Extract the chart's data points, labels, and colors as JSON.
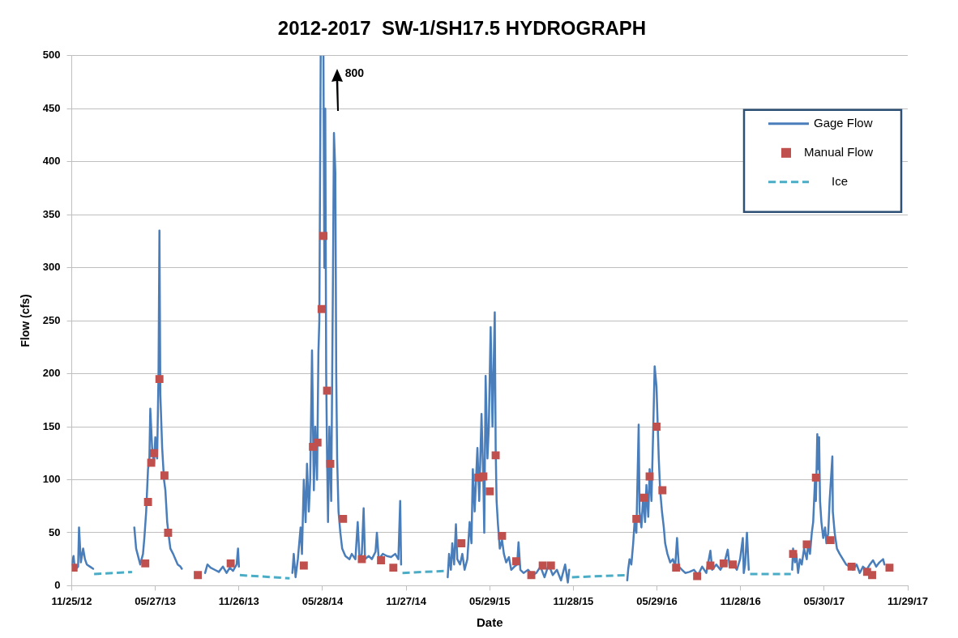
{
  "chart_data": {
    "type": "line",
    "title": "2012-2017  SW-1/SH17.5 HYDROGRAPH",
    "xlabel": "Date",
    "ylabel": "Flow (cfs)",
    "xlim": [
      "2012-11-25",
      "2017-11-29"
    ],
    "xticks": [
      {
        "value": "2012-11-25",
        "label": "11/25/12"
      },
      {
        "value": "2013-05-27",
        "label": "05/27/13"
      },
      {
        "value": "2013-11-26",
        "label": "11/26/13"
      },
      {
        "value": "2014-05-28",
        "label": "05/28/14"
      },
      {
        "value": "2014-11-27",
        "label": "11/27/14"
      },
      {
        "value": "2015-05-29",
        "label": "05/29/15"
      },
      {
        "value": "2015-11-28",
        "label": "11/28/15"
      },
      {
        "value": "2016-05-29",
        "label": "05/29/16"
      },
      {
        "value": "2016-11-28",
        "label": "11/28/16"
      },
      {
        "value": "2017-05-30",
        "label": "05/30/17"
      },
      {
        "value": "2017-11-29",
        "label": "11/29/17"
      }
    ],
    "ylim": [
      0,
      500
    ],
    "yticks": [
      0,
      50,
      100,
      150,
      200,
      250,
      300,
      350,
      400,
      450,
      500
    ],
    "grid": "y",
    "legend": "top right",
    "annotations": [
      "800"
    ],
    "series": [
      {
        "name": "Gage Flow",
        "type": "line",
        "color": "#4a7ebb",
        "marker": "none",
        "line_style": "solid",
        "x": [
          "2012-11-25",
          "2012-11-29",
          "2012-12-02",
          "2012-12-09",
          "2012-12-11",
          "2012-12-15",
          "2012-12-20",
          "2012-12-24",
          "2012-12-28",
          "2013-01-04",
          "2013-01-11",
          "2013-02-20",
          "2013-04-11",
          "2013-04-15",
          "2013-04-21",
          "2013-04-24",
          "2013-04-30",
          "2013-05-03",
          "2013-05-07",
          "2013-05-11",
          "2013-05-14",
          "2013-05-16",
          "2013-05-20",
          "2013-05-24",
          "2013-05-27",
          "2013-05-31",
          "2013-06-03",
          "2013-06-05",
          "2013-06-07",
          "2013-06-11",
          "2013-06-15",
          "2013-06-18",
          "2013-06-22",
          "2013-06-26",
          "2013-06-29",
          "2013-07-05",
          "2013-07-10",
          "2013-07-15",
          "2013-07-21",
          "2013-07-24",
          "2013-08-20",
          "2013-09-13",
          "2013-09-18",
          "2013-09-25",
          "2013-10-04",
          "2013-10-13",
          "2013-10-22",
          "2013-10-30",
          "2013-11-06",
          "2013-11-13",
          "2013-11-21",
          "2013-11-24",
          "2013-11-26",
          "2014-01-20",
          "2014-03-23",
          "2014-03-26",
          "2014-03-30",
          "2014-04-04",
          "2014-04-10",
          "2014-04-13",
          "2014-04-17",
          "2014-04-21",
          "2014-04-24",
          "2014-04-28",
          "2014-05-01",
          "2014-05-05",
          "2014-05-09",
          "2014-05-12",
          "2014-05-16",
          "2014-05-19",
          "2014-05-21",
          "2014-05-24",
          "2014-05-27",
          "2014-05-30",
          "2014-06-01",
          "2014-06-03",
          "2014-06-05",
          "2014-06-07",
          "2014-06-09",
          "2014-06-12",
          "2014-06-16",
          "2014-06-20",
          "2014-06-22",
          "2014-06-25",
          "2014-06-27",
          "2014-06-29",
          "2014-07-02",
          "2014-07-06",
          "2014-07-10",
          "2014-07-17",
          "2014-07-26",
          "2014-07-31",
          "2014-08-08",
          "2014-08-13",
          "2014-08-17",
          "2014-08-22",
          "2014-08-26",
          "2014-08-29",
          "2014-09-06",
          "2014-09-13",
          "2014-09-21",
          "2014-09-24",
          "2014-09-28",
          "2014-10-07",
          "2014-10-16",
          "2014-10-25",
          "2014-11-03",
          "2014-11-10",
          "2014-11-14",
          "2014-11-16",
          "2015-01-10",
          "2015-02-26",
          "2015-03-01",
          "2015-03-05",
          "2015-03-08",
          "2015-03-12",
          "2015-03-16",
          "2015-03-19",
          "2015-03-25",
          "2015-03-30",
          "2015-04-04",
          "2015-04-10",
          "2015-04-15",
          "2015-04-19",
          "2015-04-22",
          "2015-04-26",
          "2015-05-02",
          "2015-05-06",
          "2015-05-11",
          "2015-05-15",
          "2015-05-17",
          "2015-05-20",
          "2015-05-24",
          "2015-05-27",
          "2015-05-31",
          "2015-06-04",
          "2015-06-09",
          "2015-06-11",
          "2015-06-13",
          "2015-06-16",
          "2015-06-20",
          "2015-06-25",
          "2015-06-29",
          "2015-07-04",
          "2015-07-10",
          "2015-07-15",
          "2015-07-22",
          "2015-07-28",
          "2015-07-31",
          "2015-08-04",
          "2015-08-11",
          "2015-08-21",
          "2015-08-30",
          "2015-09-08",
          "2015-09-17",
          "2015-09-26",
          "2015-10-05",
          "2015-10-14",
          "2015-10-23",
          "2015-11-01",
          "2015-11-10",
          "2015-11-16",
          "2015-11-19",
          "2016-01-20",
          "2016-03-25",
          "2016-03-27",
          "2016-03-30",
          "2016-04-03",
          "2016-04-07",
          "2016-04-10",
          "2016-04-14",
          "2016-04-19",
          "2016-04-21",
          "2016-04-25",
          "2016-04-29",
          "2016-05-03",
          "2016-05-06",
          "2016-05-10",
          "2016-05-13",
          "2016-05-17",
          "2016-05-21",
          "2016-05-24",
          "2016-05-28",
          "2016-06-02",
          "2016-06-05",
          "2016-06-09",
          "2016-06-13",
          "2016-06-16",
          "2016-06-21",
          "2016-06-27",
          "2016-07-03",
          "2016-07-08",
          "2016-07-12",
          "2016-07-16",
          "2016-07-23",
          "2016-07-30",
          "2016-08-08",
          "2016-08-18",
          "2016-08-27",
          "2016-09-05",
          "2016-09-14",
          "2016-09-23",
          "2016-09-27",
          "2016-10-06",
          "2016-10-15",
          "2016-10-24",
          "2016-10-31",
          "2016-11-04",
          "2016-11-13",
          "2016-11-20",
          "2016-11-27",
          "2016-12-03",
          "2016-12-05",
          "2016-12-08",
          "2016-12-12",
          "2016-12-16",
          "2017-02-10",
          "2017-03-21",
          "2017-03-23",
          "2017-03-27",
          "2017-03-30",
          "2017-04-03",
          "2017-04-07",
          "2017-04-11",
          "2017-04-16",
          "2017-04-22",
          "2017-04-25",
          "2017-04-29",
          "2017-05-03",
          "2017-05-06",
          "2017-05-10",
          "2017-05-12",
          "2017-05-15",
          "2017-05-17",
          "2017-05-19",
          "2017-05-21",
          "2017-05-24",
          "2017-05-28",
          "2017-06-01",
          "2017-06-04",
          "2017-06-08",
          "2017-06-11",
          "2017-06-17",
          "2017-06-18",
          "2017-06-22",
          "2017-06-27",
          "2017-07-03",
          "2017-07-10",
          "2017-07-17",
          "2017-07-25",
          "2017-08-01",
          "2017-08-09",
          "2017-08-16",
          "2017-08-23",
          "2017-08-31",
          "2017-09-07",
          "2017-09-14",
          "2017-09-21",
          "2017-09-28",
          "2017-10-06",
          "2017-10-09"
        ],
        "values": [
          20,
          28,
          15,
          18,
          55,
          22,
          35,
          25,
          20,
          18,
          16,
          null,
          55,
          35,
          25,
          20,
          30,
          45,
          70,
          110,
          120,
          167,
          130,
          115,
          140,
          120,
          200,
          335,
          180,
          130,
          100,
          90,
          60,
          45,
          35,
          30,
          25,
          20,
          18,
          16,
          null,
          12,
          20,
          17,
          15,
          13,
          18,
          12,
          17,
          14,
          20,
          35,
          18,
          null,
          12,
          30,
          8,
          25,
          55,
          30,
          100,
          60,
          115,
          70,
          100,
          222,
          90,
          150,
          100,
          220,
          250,
          500,
          null,
          500,
          300,
          450,
          200,
          120,
          60,
          150,
          80,
          300,
          427,
          390,
          200,
          120,
          70,
          50,
          35,
          28,
          25,
          30,
          25,
          60,
          25,
          30,
          73,
          25,
          28,
          25,
          32,
          50,
          25,
          30,
          28,
          27,
          30,
          25,
          80,
          20,
          null,
          8,
          30,
          15,
          40,
          20,
          58,
          25,
          20,
          30,
          15,
          25,
          60,
          40,
          110,
          70,
          130,
          80,
          162,
          100,
          50,
          198,
          120,
          150,
          244,
          150,
          258,
          130,
          80,
          58,
          35,
          43,
          30,
          22,
          27,
          15,
          18,
          20,
          41,
          15,
          12,
          15,
          10,
          12,
          18,
          8,
          20,
          10,
          15,
          5,
          20,
          3,
          15,
          null,
          5,
          15,
          25,
          20,
          40,
          60,
          50,
          152,
          70,
          55,
          85,
          60,
          95,
          65,
          110,
          80,
          150,
          207,
          188,
          120,
          90,
          70,
          55,
          40,
          30,
          22,
          25,
          18,
          45,
          18,
          15,
          12,
          13,
          15,
          10,
          18,
          12,
          33,
          15,
          20,
          15,
          22,
          34,
          18,
          20,
          15,
          25,
          45,
          12,
          20,
          50,
          15,
          null,
          15,
          35,
          22,
          30,
          12,
          25,
          20,
          35,
          25,
          40,
          30,
          50,
          60,
          100,
          80,
          143,
          110,
          140,
          80,
          60,
          45,
          55,
          40,
          50,
          80,
          122,
          70,
          50,
          35,
          30,
          25,
          20,
          18,
          15,
          20,
          12,
          18,
          15,
          20,
          24,
          18,
          22,
          25,
          20
        ]
      },
      {
        "name": "Manual Flow",
        "type": "scatter",
        "color": "#c0504d",
        "marker": "square",
        "x": [
          "2012-11-29",
          "2013-05-05",
          "2013-05-11",
          "2013-05-18",
          "2013-05-24",
          "2013-06-05",
          "2013-06-16",
          "2013-06-24",
          "2013-08-28",
          "2013-11-08",
          "2014-04-17",
          "2014-05-07",
          "2014-05-17",
          "2014-05-26",
          "2014-05-30",
          "2014-06-07",
          "2014-06-14",
          "2014-07-12",
          "2014-08-22",
          "2014-10-03",
          "2014-10-30",
          "2015-03-28",
          "2015-05-04",
          "2015-05-15",
          "2015-05-29",
          "2015-06-11",
          "2015-06-25",
          "2015-07-26",
          "2015-08-28",
          "2015-09-22",
          "2015-10-10",
          "2016-04-14",
          "2016-05-01",
          "2016-05-13",
          "2016-05-28",
          "2016-06-10",
          "2016-07-10",
          "2016-08-25",
          "2016-09-23",
          "2016-10-22",
          "2016-11-11",
          "2017-03-23",
          "2017-04-22",
          "2017-05-12",
          "2017-06-13",
          "2017-07-29",
          "2017-09-01",
          "2017-09-12",
          "2017-10-20"
        ],
        "values": [
          17,
          21,
          79,
          116,
          125,
          195,
          104,
          50,
          10,
          21,
          19,
          131,
          135,
          261,
          330,
          184,
          115,
          63,
          25,
          24,
          17,
          40,
          102,
          103,
          89,
          123,
          47,
          23,
          10,
          19,
          19,
          63,
          83,
          103,
          150,
          90,
          17,
          9,
          19,
          21,
          20,
          30,
          39,
          102,
          43,
          18,
          13,
          10,
          17
        ]
      },
      {
        "name": "Ice",
        "type": "line",
        "color": "#4bacc6",
        "marker": "none",
        "line_style": "dashed",
        "x": [
          "2013-01-13",
          "2013-04-06",
          "2013-08-01",
          "2013-11-28",
          "2014-03-17",
          "2014-08-01",
          "2014-11-19",
          "2015-02-24",
          "2015-08-01",
          "2015-11-25",
          "2016-03-23",
          "2016-08-01",
          "2016-12-19",
          "2017-03-18"
        ],
        "values": [
          11,
          13,
          null,
          10,
          7,
          null,
          12,
          14,
          null,
          8,
          10,
          null,
          11,
          11
        ]
      }
    ]
  }
}
